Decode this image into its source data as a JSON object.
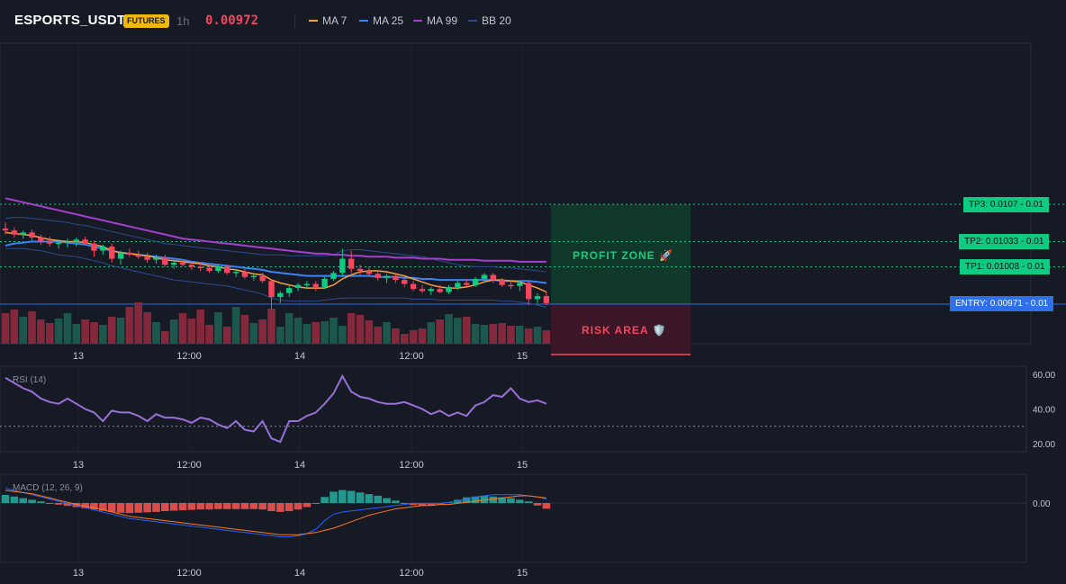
{
  "header": {
    "symbol": "ESPORTS_USDT",
    "badge": "FUTURES",
    "timeframe": "1h",
    "last_price": "0.00972",
    "legend": [
      {
        "name": "MA 7",
        "color": "#f7a23b"
      },
      {
        "name": "MA 25",
        "color": "#3b82f6"
      },
      {
        "name": "MA 99",
        "color": "#a53fce"
      },
      {
        "name": "BB 20",
        "color": "#2c4a8a"
      }
    ]
  },
  "levels": {
    "tp3": {
      "label": "TP3: 0.0107",
      "suffix": "- 0.01"
    },
    "tp2": {
      "label": "TP2: 0.01033",
      "suffix": "- 0.01"
    },
    "tp1": {
      "label": "TP1: 0.01008",
      "suffix": "- 0.01"
    },
    "entry": {
      "label": "ENTRY: 0.00971",
      "suffix": "- 0.01"
    }
  },
  "zones": {
    "profit": "PROFIT ZONE 🚀",
    "risk": "RISK AREA 🛡️"
  },
  "axis": {
    "x_ticks": [
      "13",
      "12:00",
      "14",
      "12:00",
      "15"
    ],
    "rsi_ticks": [
      "60.00",
      "40.00",
      "20.00"
    ],
    "macd_ticks": [
      "0.00"
    ]
  },
  "colors": {
    "up": "#0ecb81",
    "down": "#f6465d",
    "bg": "#161a25"
  },
  "chart_data": [
    {
      "type": "candlestick",
      "candles": [
        [
          0.01046,
          0.01052,
          0.0104,
          0.01044
        ],
        [
          0.01044,
          0.01047,
          0.01037,
          0.0104
        ],
        [
          0.0104,
          0.01044,
          0.01036,
          0.01042
        ],
        [
          0.01042,
          0.01045,
          0.01034,
          0.01037
        ],
        [
          0.01037,
          0.0104,
          0.0103,
          0.01033
        ],
        [
          0.01033,
          0.01038,
          0.01028,
          0.01031
        ],
        [
          0.01031,
          0.01035,
          0.01026,
          0.01032
        ],
        [
          0.01032,
          0.01036,
          0.01027,
          0.01033
        ],
        [
          0.01033,
          0.01037,
          0.01028,
          0.01035
        ],
        [
          0.01035,
          0.01038,
          0.0103,
          0.01031
        ],
        [
          0.01031,
          0.01034,
          0.01018,
          0.01024
        ],
        [
          0.01024,
          0.0103,
          0.0102,
          0.01028
        ],
        [
          0.01028,
          0.01031,
          0.01012,
          0.01016
        ],
        [
          0.01016,
          0.01024,
          0.0101,
          0.01022
        ],
        [
          0.01022,
          0.01026,
          0.01018,
          0.0102
        ],
        [
          0.0102,
          0.01024,
          0.01016,
          0.01018
        ],
        [
          0.01018,
          0.01022,
          0.01012,
          0.01015
        ],
        [
          0.01015,
          0.0102,
          0.01011,
          0.01017
        ],
        [
          0.01017,
          0.0102,
          0.01008,
          0.0101
        ],
        [
          0.0101,
          0.01014,
          0.01006,
          0.01012
        ],
        [
          0.01012,
          0.01015,
          0.01008,
          0.0101
        ],
        [
          0.0101,
          0.01013,
          0.01005,
          0.01008
        ],
        [
          0.01008,
          0.01012,
          0.01004,
          0.01007
        ],
        [
          0.01007,
          0.01011,
          0.01002,
          0.01004
        ],
        [
          0.01004,
          0.0101,
          0.01002,
          0.01008
        ],
        [
          0.01008,
          0.0101,
          0.01,
          0.01002
        ],
        [
          0.01002,
          0.01006,
          0.00998,
          0.01003
        ],
        [
          0.01003,
          0.01006,
          0.00996,
          0.00998
        ],
        [
          0.00998,
          0.01002,
          0.00994,
          0.00999
        ],
        [
          0.00999,
          0.01002,
          0.00992,
          0.00994
        ],
        [
          0.00994,
          0.00996,
          0.00966,
          0.00978
        ],
        [
          0.00978,
          0.00984,
          0.00972,
          0.00982
        ],
        [
          0.00982,
          0.0099,
          0.00978,
          0.00987
        ],
        [
          0.00987,
          0.00992,
          0.00984,
          0.0099
        ],
        [
          0.0099,
          0.00994,
          0.00986,
          0.00991
        ],
        [
          0.00991,
          0.00994,
          0.00984,
          0.00988
        ],
        [
          0.00988,
          0.00998,
          0.00986,
          0.00996
        ],
        [
          0.00996,
          0.01004,
          0.00994,
          0.01002
        ],
        [
          0.01002,
          0.01026,
          0.00998,
          0.01016
        ],
        [
          0.01016,
          0.01024,
          0.01002,
          0.01006
        ],
        [
          0.01006,
          0.0101,
          0.01,
          0.01004
        ],
        [
          0.01004,
          0.01008,
          0.00998,
          0.01001
        ],
        [
          0.01001,
          0.01004,
          0.00994,
          0.00997
        ],
        [
          0.00997,
          0.01001,
          0.00992,
          0.00999
        ],
        [
          0.00999,
          0.01002,
          0.00992,
          0.00995
        ],
        [
          0.00995,
          0.00998,
          0.00988,
          0.00991
        ],
        [
          0.00991,
          0.00994,
          0.00984,
          0.00986
        ],
        [
          0.00986,
          0.0099,
          0.00982,
          0.00984
        ],
        [
          0.00984,
          0.00988,
          0.0098,
          0.00986
        ],
        [
          0.00986,
          0.0099,
          0.00982,
          0.00983
        ],
        [
          0.00983,
          0.0099,
          0.00981,
          0.00988
        ],
        [
          0.00988,
          0.00994,
          0.00985,
          0.00992
        ],
        [
          0.00992,
          0.00996,
          0.00988,
          0.0099
        ],
        [
          0.0099,
          0.00998,
          0.00988,
          0.00996
        ],
        [
          0.00996,
          0.01002,
          0.00992,
          0.01
        ],
        [
          0.01,
          0.01002,
          0.00992,
          0.00995
        ],
        [
          0.00995,
          0.00997,
          0.00988,
          0.0099
        ],
        [
          0.0099,
          0.00994,
          0.00986,
          0.00989
        ],
        [
          0.00989,
          0.00994,
          0.00984,
          0.00992
        ],
        [
          0.00992,
          0.00994,
          0.0097,
          0.00976
        ],
        [
          0.00976,
          0.00982,
          0.00972,
          0.00979
        ],
        [
          0.00979,
          0.00983,
          0.0097,
          0.00972
        ]
      ],
      "volume": [
        34,
        38,
        30,
        36,
        27,
        23,
        28,
        34,
        22,
        27,
        24,
        21,
        30,
        29,
        41,
        46,
        35,
        24,
        14,
        27,
        34,
        28,
        38,
        21,
        35,
        19,
        41,
        32,
        23,
        27,
        39,
        19,
        34,
        29,
        22,
        24,
        25,
        29,
        20,
        34,
        32,
        26,
        19,
        24,
        17,
        11,
        15,
        17,
        24,
        27,
        33,
        29,
        30,
        22,
        21,
        22,
        23,
        20,
        20,
        17,
        19,
        15
      ],
      "ma7": [
        0.01042,
        0.01041,
        0.0104,
        0.01039,
        0.01037,
        0.01035,
        0.01034,
        0.01033,
        0.01033,
        0.01032,
        0.0103,
        0.01028,
        0.01024,
        0.01022,
        0.01021,
        0.0102,
        0.01019,
        0.01017,
        0.01015,
        0.01014,
        0.01013,
        0.01012,
        0.01011,
        0.01009,
        0.01008,
        0.01006,
        0.01005,
        0.01003,
        0.01001,
        0.01,
        0.00995,
        0.00992,
        0.0099,
        0.00988,
        0.00987,
        0.00987,
        0.00987,
        0.0099,
        0.00996,
        0.01,
        0.01003,
        0.01004,
        0.01004,
        0.01003,
        0.01001,
        0.00999,
        0.00996,
        0.00993,
        0.0099,
        0.00988,
        0.00987,
        0.00987,
        0.00988,
        0.0099,
        0.00993,
        0.00995,
        0.00995,
        0.00994,
        0.00993,
        0.0099,
        0.00987,
        0.00983
      ],
      "ma25": [
        0.01029,
        0.01031,
        0.01032,
        0.01033,
        0.01033,
        0.01033,
        0.01033,
        0.01032,
        0.01031,
        0.0103,
        0.01028,
        0.01026,
        0.01024,
        0.01022,
        0.01021,
        0.0102,
        0.01019,
        0.01018,
        0.01017,
        0.01016,
        0.01015,
        0.01013,
        0.01012,
        0.01011,
        0.0101,
        0.01009,
        0.01008,
        0.01007,
        0.01006,
        0.01005,
        0.01003,
        0.01002,
        0.01001,
        0.01,
        0.00999,
        0.00999,
        0.00999,
        0.00999,
        0.00999,
        0.00999,
        0.00999,
        0.00999,
        0.00998,
        0.00998,
        0.00998,
        0.00997,
        0.00997,
        0.00996,
        0.00996,
        0.00995,
        0.00995,
        0.00995,
        0.00995,
        0.00995,
        0.00995,
        0.00995,
        0.00994,
        0.00994,
        0.00994,
        0.00994,
        0.00993,
        0.00992
      ],
      "ma99": [
        0.01076,
        0.01074,
        0.01072,
        0.0107,
        0.01068,
        0.01066,
        0.01064,
        0.01062,
        0.0106,
        0.01058,
        0.01056,
        0.01054,
        0.01052,
        0.0105,
        0.01048,
        0.01046,
        0.01044,
        0.01042,
        0.0104,
        0.01038,
        0.01036,
        0.01035,
        0.01034,
        0.01033,
        0.01032,
        0.01031,
        0.0103,
        0.01029,
        0.01028,
        0.01027,
        0.01026,
        0.01025,
        0.01024,
        0.01023,
        0.01022,
        0.01021,
        0.01021,
        0.0102,
        0.0102,
        0.01019,
        0.01019,
        0.01018,
        0.01018,
        0.01018,
        0.01017,
        0.01017,
        0.01017,
        0.01016,
        0.01016,
        0.01016,
        0.01015,
        0.01015,
        0.01015,
        0.01015,
        0.01014,
        0.01014,
        0.01014,
        0.01014,
        0.01013,
        0.01013,
        0.01013,
        0.01013
      ],
      "bb_upper": [
        0.01056,
        0.01057,
        0.01057,
        0.01056,
        0.01055,
        0.01054,
        0.01053,
        0.01052,
        0.0105,
        0.01049,
        0.01047,
        0.01045,
        0.01043,
        0.01041,
        0.01039,
        0.01037,
        0.01035,
        0.01033,
        0.01031,
        0.0103,
        0.01029,
        0.01028,
        0.01027,
        0.01026,
        0.01025,
        0.01024,
        0.01023,
        0.01022,
        0.01021,
        0.0102,
        0.0102,
        0.0102,
        0.01019,
        0.01019,
        0.01019,
        0.01019,
        0.01019,
        0.0102,
        0.01024,
        0.01025,
        0.01025,
        0.01024,
        0.01023,
        0.01022,
        0.01021,
        0.0102,
        0.01019,
        0.01018,
        0.01016,
        0.01014,
        0.01012,
        0.0101,
        0.01009,
        0.01008,
        0.01008,
        0.01008,
        0.01007,
        0.01007,
        0.01006,
        0.01005,
        0.01004,
        0.01003
      ],
      "bb_lower": [
        0.01026,
        0.01026,
        0.01026,
        0.01025,
        0.01024,
        0.01022,
        0.0102,
        0.01019,
        0.01018,
        0.01016,
        0.01014,
        0.01012,
        0.01009,
        0.01007,
        0.01005,
        0.01003,
        0.01001,
        0.00999,
        0.00997,
        0.00995,
        0.00994,
        0.00993,
        0.00992,
        0.00991,
        0.0099,
        0.00989,
        0.00987,
        0.00985,
        0.00983,
        0.00981,
        0.00977,
        0.00975,
        0.00974,
        0.00974,
        0.00974,
        0.00974,
        0.00975,
        0.00976,
        0.00977,
        0.00977,
        0.00977,
        0.00977,
        0.00977,
        0.00977,
        0.00977,
        0.00977,
        0.00976,
        0.00976,
        0.00976,
        0.00975,
        0.00975,
        0.00975,
        0.00975,
        0.00975,
        0.00975,
        0.00975,
        0.00974,
        0.00974,
        0.00973,
        0.00972,
        0.0097,
        0.00968
      ],
      "levels": {
        "tp3": 0.0107,
        "tp2": 0.01033,
        "tp1": 0.01008,
        "entry": 0.00971
      }
    },
    {
      "type": "line",
      "title": "RSI (14)",
      "ylim": [
        15,
        62
      ],
      "values": [
        58,
        55,
        52,
        50,
        46,
        44,
        43,
        46,
        43,
        40,
        38,
        33,
        39,
        38,
        38,
        36,
        33,
        37,
        35,
        35,
        34,
        32,
        35,
        34,
        31,
        29,
        33,
        28,
        27,
        33,
        23,
        21,
        33,
        33,
        36,
        38,
        43,
        49,
        59,
        50,
        47,
        46,
        44,
        43,
        43,
        44,
        42,
        40,
        37,
        39,
        36,
        38,
        36,
        42,
        44,
        48,
        47,
        52,
        46,
        44,
        45,
        43
      ]
    },
    {
      "type": "bar",
      "title": "MACD (12, 26, 9)",
      "histogram": [
        2.0,
        1.6,
        1.2,
        0.8,
        0.4,
        0.0,
        -0.4,
        -0.7,
        -1.0,
        -1.3,
        -1.6,
        -1.9,
        -2.2,
        -2.4,
        -2.5,
        -2.4,
        -2.3,
        -2.2,
        -2.0,
        -1.9,
        -1.8,
        -1.7,
        -1.6,
        -1.6,
        -1.5,
        -1.5,
        -1.5,
        -1.5,
        -1.5,
        -1.6,
        -2.0,
        -2.2,
        -2.0,
        -1.6,
        -1.0,
        -0.2,
        1.5,
        2.8,
        3.2,
        3.0,
        2.6,
        2.2,
        1.8,
        1.2,
        0.6,
        0.0,
        -0.5,
        -0.7,
        -0.6,
        -0.3,
        0.2,
        0.8,
        1.4,
        1.6,
        1.8,
        1.6,
        1.4,
        1.2,
        0.8,
        0.4,
        -0.6,
        -1.4
      ],
      "macd": [
        2,
        0,
        -2,
        -4,
        -6,
        -8,
        -10,
        -12,
        -14,
        -16,
        -18,
        -20,
        -22,
        -24,
        -26,
        -27,
        -28,
        -29,
        -30,
        -31,
        -32,
        -33,
        -34,
        -35,
        -36,
        -37,
        -38,
        -39,
        -40,
        -41,
        -42,
        -43,
        -43,
        -42,
        -40,
        -36,
        -28,
        -22,
        -20,
        -19,
        -18,
        -17,
        -16,
        -15,
        -14,
        -13,
        -12,
        -12,
        -12,
        -12,
        -11,
        -10,
        -8,
        -6,
        -5,
        -4,
        -4,
        -4,
        -4,
        -5,
        -6,
        -8
      ],
      "signal": [
        0,
        -1,
        -2,
        -3,
        -5,
        -7,
        -9,
        -11,
        -13,
        -15,
        -16,
        -18,
        -20,
        -22,
        -24,
        -25,
        -26,
        -27,
        -28,
        -29,
        -30,
        -31,
        -32,
        -33,
        -34,
        -35,
        -36,
        -37,
        -38,
        -39,
        -40,
        -41,
        -41,
        -41,
        -40,
        -39,
        -37,
        -35,
        -32,
        -29,
        -26,
        -23,
        -21,
        -19,
        -17,
        -16,
        -15,
        -14,
        -14,
        -13,
        -13,
        -12,
        -11,
        -10,
        -9,
        -8,
        -7,
        -6,
        -5,
        -5,
        -6,
        -7
      ]
    }
  ]
}
